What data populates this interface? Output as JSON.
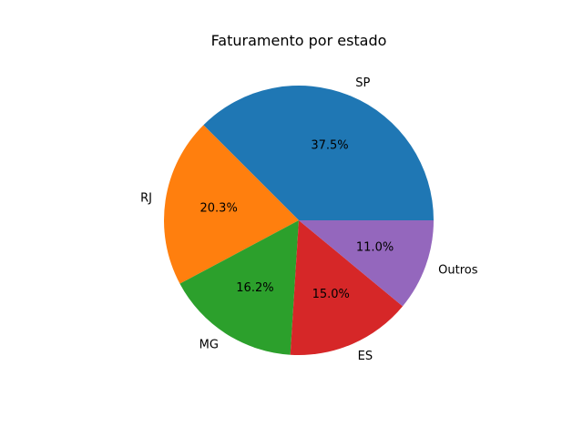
{
  "chart_data": {
    "type": "pie",
    "title": "Faturamento por estado",
    "categories": [
      "SP",
      "RJ",
      "MG",
      "ES",
      "Outros"
    ],
    "values": [
      37.5,
      20.3,
      16.2,
      15.0,
      11.0
    ],
    "percent_labels": [
      "37.5%",
      "20.3%",
      "16.2%",
      "15.0%",
      "11.0%"
    ],
    "colors": [
      "#1f77b4",
      "#ff7f0e",
      "#2ca02c",
      "#d62728",
      "#9467bd"
    ],
    "start_angle_deg": 0,
    "direction": "counterclockwise",
    "legend": "none"
  }
}
